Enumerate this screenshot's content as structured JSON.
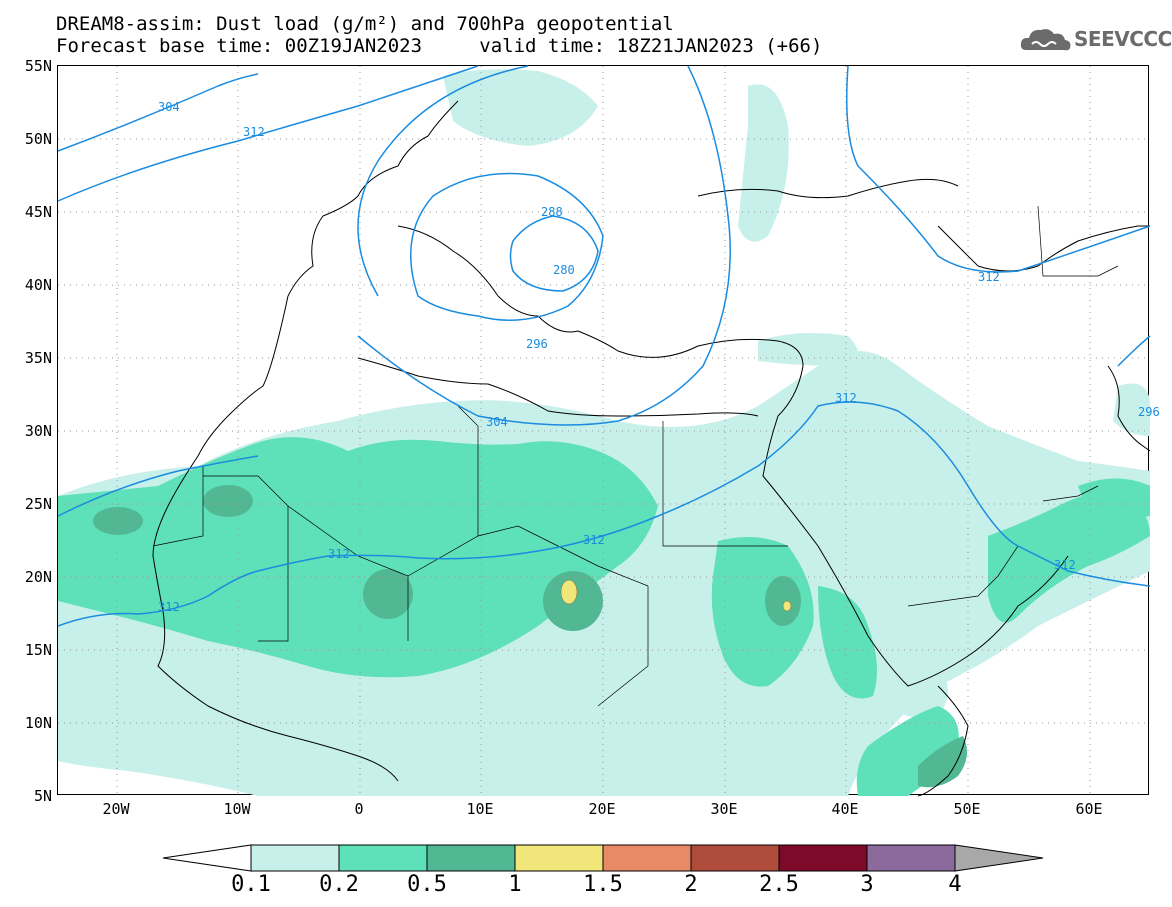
{
  "title": {
    "line1": "DREAM8-assim: Dust load (g/m²) and 700hPa geopotential",
    "base_time": "Forecast base time: 00Z19JAN2023",
    "valid_time": "valid time: 18Z21JAN2023 (+66)"
  },
  "logo": {
    "text": "SEEVCCC",
    "icon": "cloud-logo-icon"
  },
  "axes": {
    "lat_ticks": [
      "55N",
      "50N",
      "45N",
      "40N",
      "35N",
      "30N",
      "25N",
      "20N",
      "15N",
      "10N",
      "5N"
    ],
    "lon_ticks": [
      "20W",
      "10W",
      "0",
      "10E",
      "20E",
      "30E",
      "40E",
      "50E",
      "60E"
    ]
  },
  "contours": {
    "labels": [
      "304",
      "312",
      "288",
      "280",
      "296",
      "304",
      "312",
      "312",
      "312",
      "312",
      "312",
      "312",
      "296"
    ]
  },
  "colorbar": {
    "labels": [
      "0.1",
      "0.2",
      "0.5",
      "1",
      "1.5",
      "2",
      "2.5",
      "3",
      "4"
    ],
    "colors": [
      "#c8f0ea",
      "#5ee0b8",
      "#52b894",
      "#f0e67a",
      "#e88a66",
      "#b04c3c",
      "#7e0a2a",
      "#8c6a9c",
      "#a8a8a8"
    ]
  },
  "contour_color": "#1a8ce0"
}
